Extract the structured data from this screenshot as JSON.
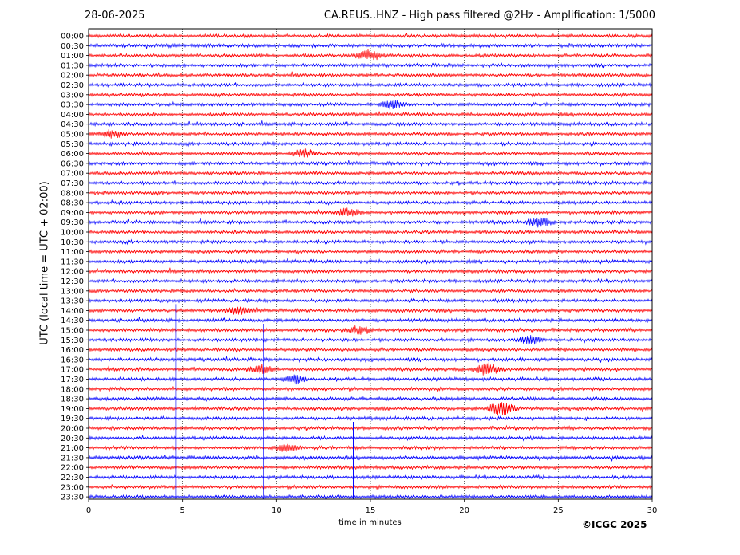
{
  "header": {
    "date": "28-06-2025",
    "station_title": "CA.REUS..HNZ - High pass filtered @2Hz - Amplification: 1/5000"
  },
  "footer": {
    "copyright": "©ICGC 2025"
  },
  "colors": {
    "trace_a": "#ff0000",
    "trace_b": "#0000ff",
    "grid": "#000000",
    "background": "#ffffff"
  },
  "chart_data": {
    "type": "line",
    "title": "CA.REUS..HNZ - High pass filtered @2Hz - Amplification: 1/5000",
    "xlabel": "time in minutes",
    "ylabel": "UTC (local time = UTC + 02:00)",
    "xlim": [
      0,
      30
    ],
    "xticks": [
      0,
      5,
      10,
      15,
      20,
      25,
      30
    ],
    "vertical_grid_at": [
      5,
      10,
      15,
      20,
      25
    ],
    "grid": "vertical dotted",
    "rows": [
      "00:00",
      "00:30",
      "01:00",
      "01:30",
      "02:00",
      "02:30",
      "03:00",
      "03:30",
      "04:00",
      "04:30",
      "05:00",
      "05:30",
      "06:00",
      "06:30",
      "07:00",
      "07:30",
      "08:00",
      "08:30",
      "09:00",
      "09:30",
      "10:00",
      "10:30",
      "11:00",
      "11:30",
      "12:00",
      "12:30",
      "13:00",
      "13:30",
      "14:00",
      "14:30",
      "15:00",
      "15:30",
      "16:00",
      "16:30",
      "17:00",
      "17:30",
      "18:00",
      "18:30",
      "19:00",
      "19:30",
      "20:00",
      "20:30",
      "21:00",
      "21:30",
      "22:00",
      "22:30",
      "23:00",
      "23:30"
    ],
    "row_colors": "alternating red / blue",
    "events": [
      {
        "row": "01:00",
        "minute": 14.9,
        "amplitude": 0.7
      },
      {
        "row": "03:30",
        "minute": 16.2,
        "amplitude": 0.6
      },
      {
        "row": "05:00",
        "minute": 1.2,
        "amplitude": 0.5
      },
      {
        "row": "06:00",
        "minute": 11.5,
        "amplitude": 0.5
      },
      {
        "row": "09:00",
        "minute": 13.8,
        "amplitude": 0.5
      },
      {
        "row": "09:30",
        "minute": 24.0,
        "amplitude": 0.6
      },
      {
        "row": "14:00",
        "minute": 8.0,
        "amplitude": 0.5
      },
      {
        "row": "15:00",
        "minute": 14.3,
        "amplitude": 0.5
      },
      {
        "row": "15:30",
        "minute": 23.5,
        "amplitude": 0.6
      },
      {
        "row": "17:00",
        "minute": 9.2,
        "amplitude": 0.6
      },
      {
        "row": "17:00",
        "minute": 21.2,
        "amplitude": 0.9
      },
      {
        "row": "17:30",
        "minute": 11.0,
        "amplitude": 0.6
      },
      {
        "row": "19:00",
        "minute": 22.0,
        "amplitude": 1.1
      },
      {
        "row": "21:00",
        "minute": 10.5,
        "amplitude": 0.5
      }
    ],
    "spikes": [
      {
        "from_row": "14:00",
        "to_row": "23:30",
        "minute": 4.65
      },
      {
        "from_row": "15:00",
        "to_row": "23:30",
        "minute": 9.3
      },
      {
        "from_row": "20:00",
        "to_row": "23:30",
        "minute": 14.1
      }
    ],
    "data_end": {
      "row": "23:30",
      "minute": 30
    }
  }
}
